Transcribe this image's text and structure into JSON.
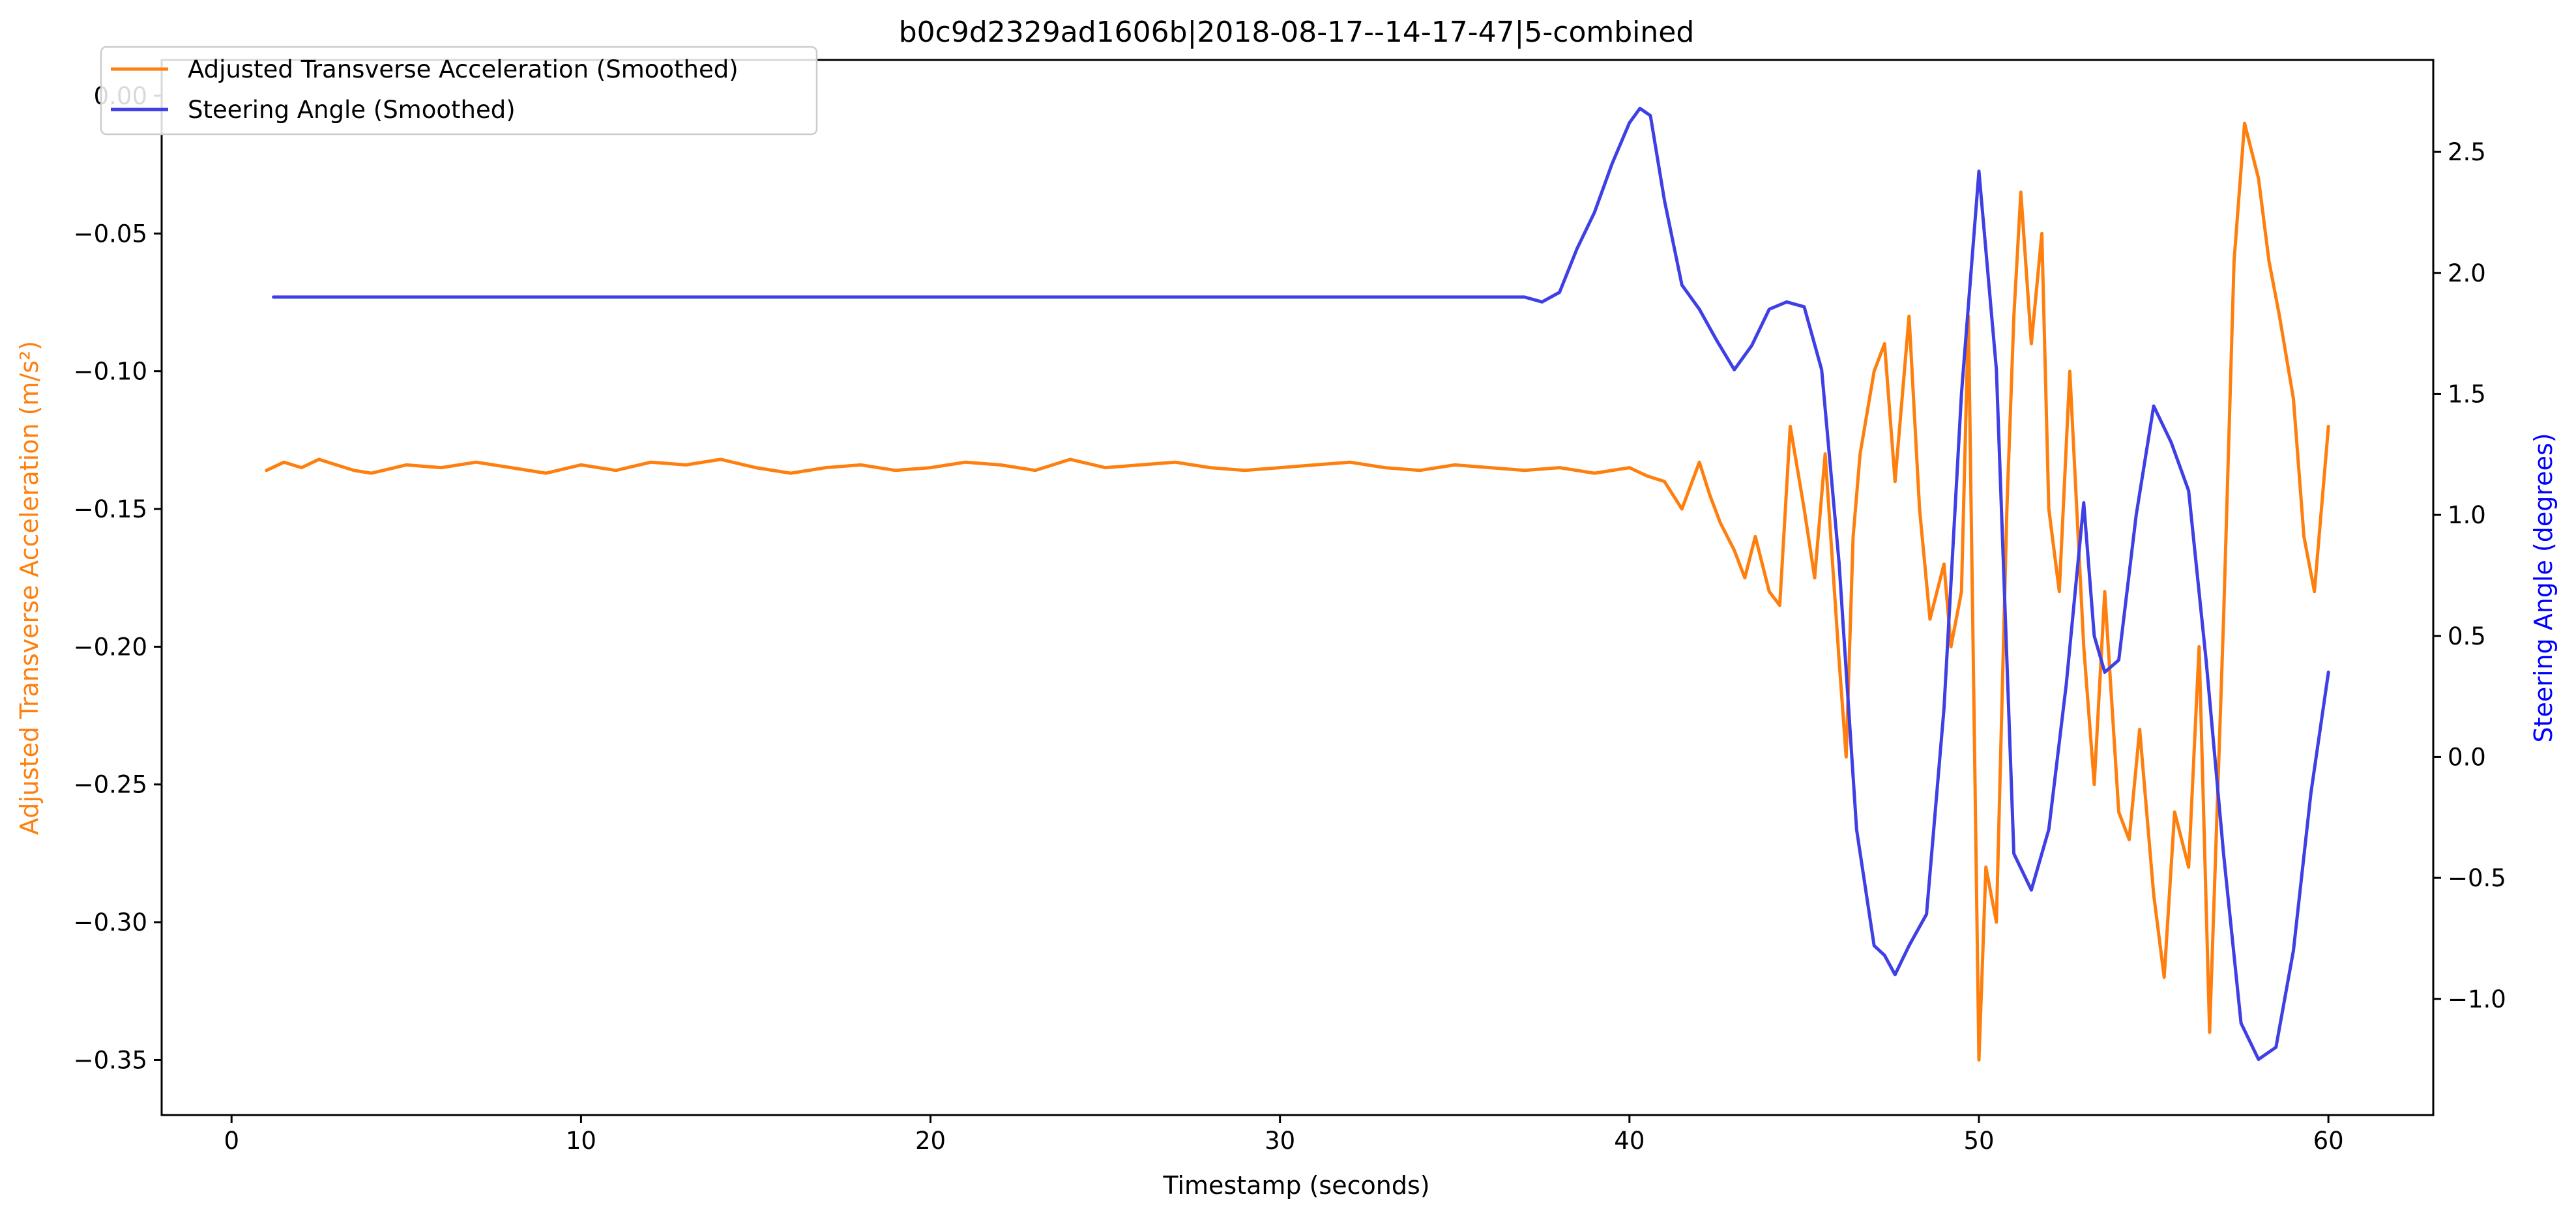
{
  "chart_data": {
    "type": "line",
    "title": "b0c9d2329ad1606b|2018-08-17--14-17-47|5-combined",
    "xlabel": "Timestamp (seconds)",
    "ylabel_left": "Adjusted Transverse Acceleration (m/s²)",
    "ylabel_right": "Steering Angle (degrees)",
    "xlim": [
      -2,
      63
    ],
    "ylim_left": [
      -0.37,
      0.013
    ],
    "ylim_right": [
      -1.48,
      2.88
    ],
    "x_ticks": [
      0,
      10,
      20,
      30,
      40,
      50,
      60
    ],
    "y_left_ticks": [
      0.0,
      -0.05,
      -0.1,
      -0.15,
      -0.2,
      -0.25,
      -0.3,
      -0.35
    ],
    "y_left_tick_labels": [
      "0.00",
      "−0.05",
      "−0.10",
      "−0.15",
      "−0.20",
      "−0.25",
      "−0.30",
      "−0.35"
    ],
    "y_right_ticks": [
      2.5,
      2.0,
      1.5,
      1.0,
      0.5,
      0.0,
      -0.5,
      -1.0
    ],
    "y_right_tick_labels": [
      "2.5",
      "2.0",
      "1.5",
      "1.0",
      "0.5",
      "0.0",
      "−0.5",
      "−1.0"
    ],
    "grid": false,
    "legend_position": "top-left",
    "series": [
      {
        "name": "Adjusted Transverse Acceleration (Smoothed)",
        "axis": "left",
        "color": "#ff7f0e",
        "x": [
          1.0,
          1.5,
          2.0,
          2.5,
          3.0,
          3.5,
          4.0,
          5.0,
          6.0,
          7.0,
          8.0,
          9.0,
          10.0,
          11.0,
          12.0,
          13.0,
          14.0,
          15.0,
          16.0,
          17.0,
          18.0,
          19.0,
          20.0,
          21.0,
          22.0,
          23.0,
          24.0,
          25.0,
          26.0,
          27.0,
          28.0,
          29.0,
          30.0,
          31.0,
          32.0,
          33.0,
          34.0,
          35.0,
          36.0,
          37.0,
          38.0,
          39.0,
          40.0,
          40.5,
          41.0,
          41.5,
          42.0,
          42.3,
          42.6,
          43.0,
          43.3,
          43.6,
          44.0,
          44.3,
          44.6,
          45.0,
          45.3,
          45.6,
          46.0,
          46.2,
          46.4,
          46.6,
          47.0,
          47.3,
          47.6,
          48.0,
          48.3,
          48.6,
          49.0,
          49.2,
          49.5,
          49.7,
          50.0,
          50.2,
          50.5,
          50.8,
          51.0,
          51.2,
          51.5,
          51.8,
          52.0,
          52.3,
          52.6,
          53.0,
          53.3,
          53.6,
          54.0,
          54.3,
          54.6,
          55.0,
          55.3,
          55.6,
          56.0,
          56.3,
          56.6,
          57.0,
          57.3,
          57.6,
          58.0,
          58.3,
          58.6,
          59.0,
          59.3,
          59.6,
          60.0
        ],
        "y": [
          -0.136,
          -0.133,
          -0.135,
          -0.132,
          -0.134,
          -0.136,
          -0.137,
          -0.134,
          -0.135,
          -0.133,
          -0.135,
          -0.137,
          -0.134,
          -0.136,
          -0.133,
          -0.134,
          -0.132,
          -0.135,
          -0.137,
          -0.135,
          -0.134,
          -0.136,
          -0.135,
          -0.133,
          -0.134,
          -0.136,
          -0.132,
          -0.135,
          -0.134,
          -0.133,
          -0.135,
          -0.136,
          -0.135,
          -0.134,
          -0.133,
          -0.135,
          -0.136,
          -0.134,
          -0.135,
          -0.136,
          -0.135,
          -0.137,
          -0.135,
          -0.138,
          -0.14,
          -0.15,
          -0.133,
          -0.145,
          -0.155,
          -0.165,
          -0.175,
          -0.16,
          -0.18,
          -0.185,
          -0.12,
          -0.15,
          -0.175,
          -0.13,
          -0.205,
          -0.24,
          -0.16,
          -0.13,
          -0.1,
          -0.09,
          -0.14,
          -0.08,
          -0.15,
          -0.19,
          -0.17,
          -0.2,
          -0.18,
          -0.08,
          -0.35,
          -0.28,
          -0.3,
          -0.15,
          -0.08,
          -0.035,
          -0.09,
          -0.05,
          -0.15,
          -0.18,
          -0.1,
          -0.2,
          -0.25,
          -0.18,
          -0.26,
          -0.27,
          -0.23,
          -0.29,
          -0.32,
          -0.26,
          -0.28,
          -0.2,
          -0.34,
          -0.19,
          -0.06,
          -0.01,
          -0.03,
          -0.06,
          -0.08,
          -0.11,
          -0.16,
          -0.18,
          -0.12
        ]
      },
      {
        "name": "Steering Angle (Smoothed)",
        "axis": "right",
        "color": "#3f3fe6",
        "x": [
          1.2,
          5.0,
          10.0,
          15.0,
          20.0,
          25.0,
          30.0,
          35.0,
          37.0,
          37.5,
          38.0,
          38.5,
          39.0,
          39.5,
          40.0,
          40.3,
          40.6,
          41.0,
          41.5,
          42.0,
          42.5,
          43.0,
          43.5,
          44.0,
          44.5,
          45.0,
          45.5,
          46.0,
          46.5,
          47.0,
          47.3,
          47.6,
          48.0,
          48.5,
          49.0,
          49.5,
          50.0,
          50.5,
          51.0,
          51.5,
          52.0,
          52.5,
          53.0,
          53.3,
          53.6,
          54.0,
          54.5,
          55.0,
          55.5,
          56.0,
          56.5,
          57.0,
          57.5,
          58.0,
          58.5,
          59.0,
          59.5,
          60.0
        ],
        "y": [
          1.9,
          1.9,
          1.9,
          1.9,
          1.9,
          1.9,
          1.9,
          1.9,
          1.9,
          1.88,
          1.92,
          2.1,
          2.25,
          2.45,
          2.62,
          2.68,
          2.65,
          2.3,
          1.95,
          1.85,
          1.72,
          1.6,
          1.7,
          1.85,
          1.88,
          1.86,
          1.6,
          0.8,
          -0.3,
          -0.78,
          -0.82,
          -0.9,
          -0.78,
          -0.65,
          0.2,
          1.5,
          2.42,
          1.6,
          -0.4,
          -0.55,
          -0.3,
          0.3,
          1.05,
          0.5,
          0.35,
          0.4,
          1.0,
          1.45,
          1.3,
          1.1,
          0.4,
          -0.4,
          -1.1,
          -1.25,
          -1.2,
          -0.8,
          -0.15,
          0.35
        ]
      }
    ]
  }
}
